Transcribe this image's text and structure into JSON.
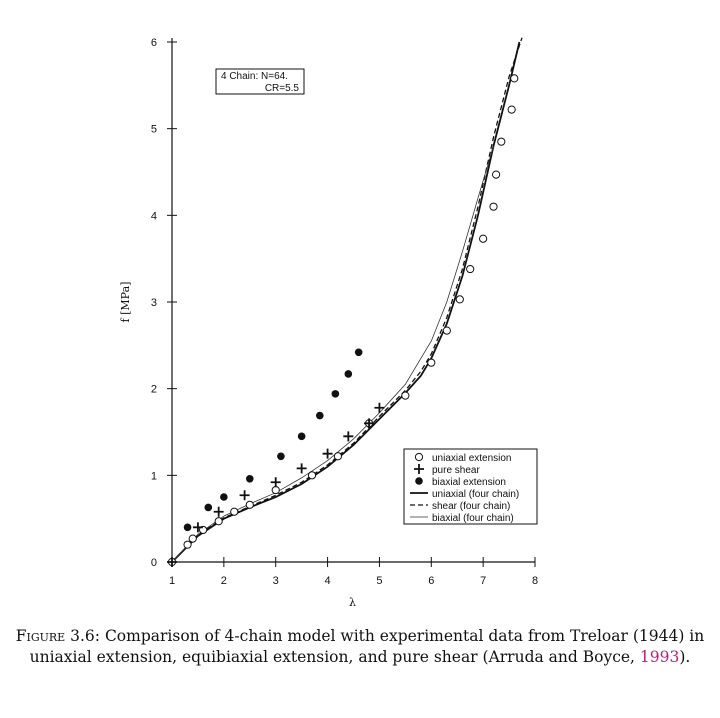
{
  "chart_data": {
    "type": "scatter",
    "xlabel": "λ",
    "ylabel": "f [MPa]",
    "xlim": [
      1,
      8
    ],
    "ylim": [
      0,
      6
    ],
    "x_ticks": [
      "1",
      "2",
      "3",
      "4",
      "5",
      "6",
      "7",
      "8"
    ],
    "y_ticks": [
      "0",
      "1",
      "2",
      "3",
      "4",
      "5",
      "6"
    ],
    "annotation": {
      "line1": "4 Chain:  N=64.",
      "line2": "CR=5.5"
    },
    "legend_position": "lower-right",
    "series": [
      {
        "name": "uniaxial extension",
        "kind": "points",
        "marker": "open-circle",
        "points": [
          [
            1.0,
            0.0
          ],
          [
            1.3,
            0.2
          ],
          [
            1.4,
            0.27
          ],
          [
            1.6,
            0.37
          ],
          [
            1.9,
            0.47
          ],
          [
            2.2,
            0.58
          ],
          [
            2.5,
            0.66
          ],
          [
            3.0,
            0.83
          ],
          [
            3.7,
            1.0
          ],
          [
            4.2,
            1.22
          ],
          [
            4.8,
            1.6
          ],
          [
            5.5,
            1.92
          ],
          [
            6.0,
            2.3
          ],
          [
            6.3,
            2.67
          ],
          [
            6.55,
            3.03
          ],
          [
            6.75,
            3.38
          ],
          [
            7.0,
            3.73
          ],
          [
            7.2,
            4.1
          ],
          [
            7.25,
            4.47
          ],
          [
            7.35,
            4.85
          ],
          [
            7.55,
            5.22
          ],
          [
            7.6,
            5.58
          ]
        ]
      },
      {
        "name": "pure shear",
        "kind": "points",
        "marker": "plus",
        "points": [
          [
            1.0,
            0.0
          ],
          [
            1.5,
            0.4
          ],
          [
            1.9,
            0.58
          ],
          [
            2.4,
            0.77
          ],
          [
            3.0,
            0.92
          ],
          [
            3.5,
            1.08
          ],
          [
            4.0,
            1.25
          ],
          [
            4.4,
            1.45
          ],
          [
            4.8,
            1.6
          ],
          [
            5.0,
            1.78
          ]
        ]
      },
      {
        "name": "biaxial extension",
        "kind": "points",
        "marker": "filled-circle",
        "points": [
          [
            1.3,
            0.4
          ],
          [
            1.7,
            0.63
          ],
          [
            2.0,
            0.75
          ],
          [
            2.5,
            0.96
          ],
          [
            3.1,
            1.22
          ],
          [
            3.5,
            1.45
          ],
          [
            3.85,
            1.69
          ],
          [
            4.15,
            1.94
          ],
          [
            4.4,
            2.17
          ],
          [
            4.6,
            2.42
          ]
        ]
      },
      {
        "name": "uniaxial (four chain)",
        "kind": "line",
        "style": "solid",
        "points": [
          [
            1.0,
            0.0
          ],
          [
            1.5,
            0.3
          ],
          [
            2.0,
            0.5
          ],
          [
            2.5,
            0.63
          ],
          [
            3.0,
            0.75
          ],
          [
            3.5,
            0.9
          ],
          [
            4.0,
            1.1
          ],
          [
            4.5,
            1.35
          ],
          [
            5.0,
            1.65
          ],
          [
            5.5,
            1.95
          ],
          [
            5.8,
            2.15
          ],
          [
            6.0,
            2.35
          ],
          [
            6.3,
            2.75
          ],
          [
            6.6,
            3.3
          ],
          [
            6.9,
            4.0
          ],
          [
            7.2,
            4.8
          ],
          [
            7.5,
            5.5
          ],
          [
            7.7,
            6.0
          ]
        ]
      },
      {
        "name": "shear (four chain)",
        "kind": "line",
        "style": "dashed",
        "points": [
          [
            1.0,
            0.0
          ],
          [
            1.5,
            0.31
          ],
          [
            2.0,
            0.51
          ],
          [
            2.5,
            0.64
          ],
          [
            3.0,
            0.77
          ],
          [
            3.5,
            0.92
          ],
          [
            4.0,
            1.12
          ],
          [
            4.5,
            1.37
          ],
          [
            5.0,
            1.68
          ],
          [
            5.5,
            1.98
          ],
          [
            5.8,
            2.2
          ],
          [
            6.0,
            2.4
          ],
          [
            6.3,
            2.82
          ],
          [
            6.6,
            3.38
          ],
          [
            6.9,
            4.1
          ],
          [
            7.2,
            4.9
          ],
          [
            7.5,
            5.6
          ],
          [
            7.75,
            6.05
          ]
        ]
      },
      {
        "name": "biaxial (four chain)",
        "kind": "line",
        "style": "thin",
        "points": [
          [
            1.0,
            0.0
          ],
          [
            1.5,
            0.32
          ],
          [
            2.0,
            0.53
          ],
          [
            2.5,
            0.67
          ],
          [
            3.0,
            0.8
          ],
          [
            3.5,
            0.97
          ],
          [
            4.0,
            1.17
          ],
          [
            4.5,
            1.42
          ],
          [
            5.0,
            1.72
          ],
          [
            5.5,
            2.05
          ],
          [
            5.8,
            2.35
          ],
          [
            6.0,
            2.55
          ],
          [
            6.3,
            3.0
          ],
          [
            6.6,
            3.58
          ],
          [
            6.9,
            4.2
          ],
          [
            7.2,
            4.8
          ]
        ]
      }
    ]
  },
  "caption": {
    "label": "Figure 3.6:",
    "text": " Comparison of 4-chain model with experimental data from Treloar (1944) in uniaxial extension, equibiaxial extension, and pure shear (Arruda and Boyce, ",
    "citation": "1993",
    "end": ")."
  }
}
